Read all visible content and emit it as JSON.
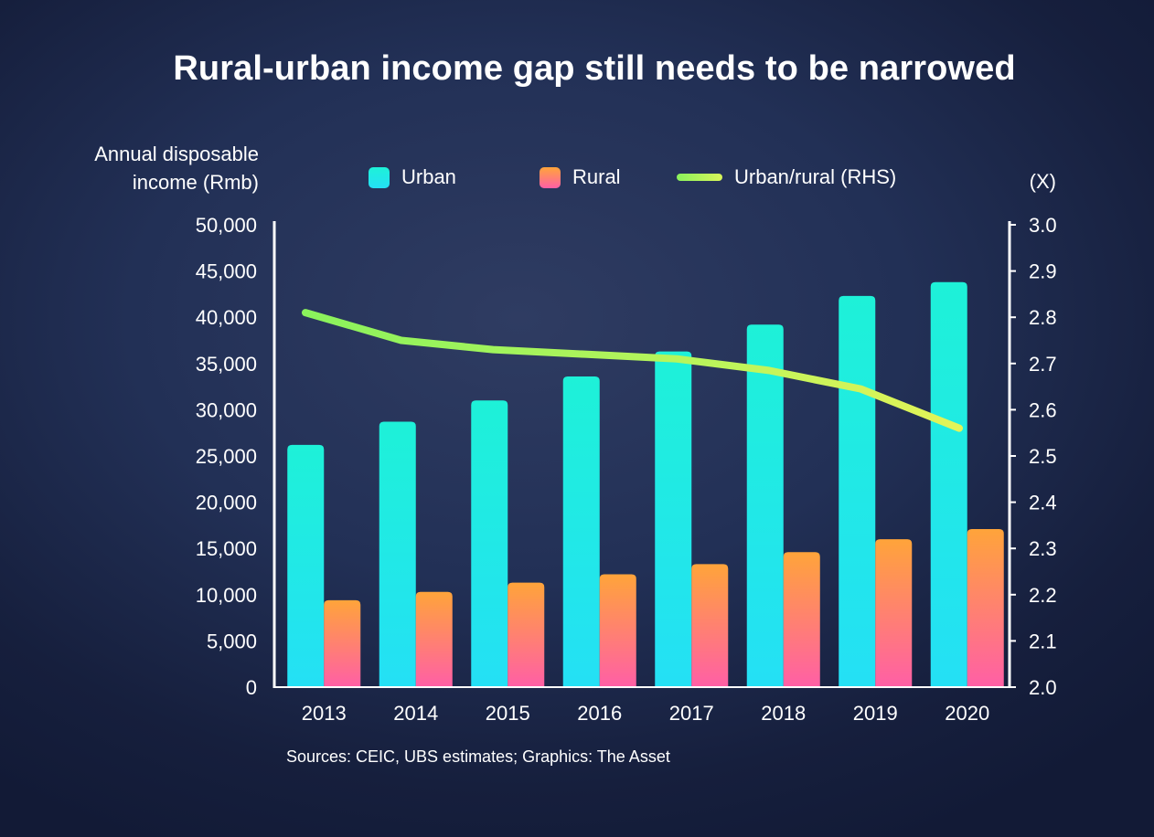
{
  "title": "Rural-urban income gap still needs to be narrowed",
  "source": "Sources: CEIC, UBS estimates; Graphics: The Asset",
  "chart_data": {
    "type": "bar",
    "title": "Rural-urban income gap still needs to be narrowed",
    "ylabel": "Annual disposable income (Rmb)",
    "ylabel_lines": [
      "Annual disposable",
      "income (Rmb)"
    ],
    "y2label": "(X)",
    "categories": [
      "2013",
      "2014",
      "2015",
      "2016",
      "2017",
      "2018",
      "2019",
      "2020"
    ],
    "ylim": [
      0,
      50000
    ],
    "y2lim": [
      2.0,
      3.0
    ],
    "yticks": [
      "0",
      "5,000",
      "10,000",
      "15,000",
      "20,000",
      "25,000",
      "30,000",
      "35,000",
      "40,000",
      "45,000",
      "50,000"
    ],
    "y2ticks": [
      "2.0",
      "2.1",
      "2.2",
      "2.3",
      "2.4",
      "2.5",
      "2.6",
      "2.7",
      "2.8",
      "2.9",
      "3.0"
    ],
    "series": [
      {
        "name": "Urban",
        "type": "bar",
        "axis": "left",
        "values": [
          26200,
          28700,
          31000,
          33600,
          36300,
          39200,
          42300,
          43800
        ],
        "color_top": "#1ef1d8",
        "color_bottom": "#24e0f5"
      },
      {
        "name": "Rural",
        "type": "bar",
        "axis": "left",
        "values": [
          9400,
          10300,
          11300,
          12200,
          13300,
          14600,
          16000,
          17100
        ],
        "color_top": "#ffa43a",
        "color_bottom": "#ff5fa6"
      },
      {
        "name": "Urban/rural (RHS)",
        "type": "line",
        "axis": "right",
        "values": [
          2.81,
          2.75,
          2.73,
          2.72,
          2.71,
          2.685,
          2.645,
          2.56
        ],
        "color_start": "#8af25c",
        "color_end": "#d9f55a"
      }
    ],
    "legend_position": "top",
    "grid": false
  }
}
